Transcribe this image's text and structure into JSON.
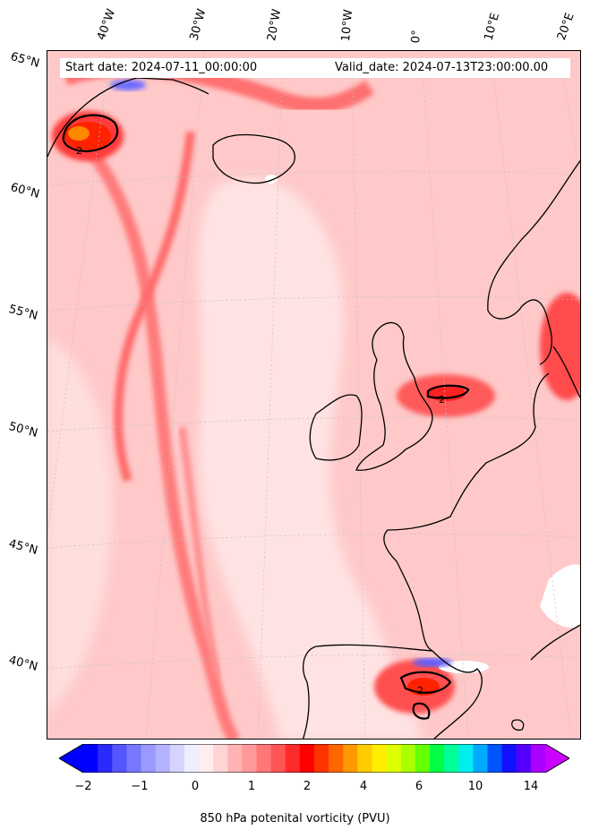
{
  "header": {
    "start_date": "Start date: 2024-07-11_00:00:00",
    "valid_date": "Valid_date: 2024-07-13T23:00:00.00"
  },
  "graticule": {
    "longitudes": [
      "40°W",
      "30°W",
      "20°W",
      "10°W",
      "0°",
      "10°E",
      "20°E"
    ],
    "latitudes": [
      "65°N",
      "60°N",
      "55°N",
      "50°N",
      "45°N",
      "40°N"
    ]
  },
  "colorbar": {
    "tick_labels": [
      "−2",
      "−1",
      "0",
      "1",
      "2",
      "4",
      "6",
      "10",
      "14"
    ],
    "label": "850 hPa potenital vorticity (PVU)",
    "colors": [
      "#0000ff",
      "#2a2aff",
      "#5555ff",
      "#7777ff",
      "#9999ff",
      "#b3b3ff",
      "#d4d4ff",
      "#eeeeff",
      "#ffeeee",
      "#ffd4d4",
      "#ffb3b3",
      "#ff9999",
      "#ff7777",
      "#ff5555",
      "#ff2a2a",
      "#ff0000",
      "#ff3300",
      "#ff6600",
      "#ff9900",
      "#ffcc00",
      "#ffee00",
      "#ddff00",
      "#aaff00",
      "#66ff00",
      "#00ff44",
      "#00ff99",
      "#00eeee",
      "#00aaff",
      "#0055ff",
      "#1111ff",
      "#5500ff",
      "#aa00ff"
    ],
    "extend_low": "#0000ff",
    "extend_high": "#cc00ff"
  },
  "contour_label": "2",
  "colors": {
    "background_field": "#ffd0d0",
    "coast": "#000000"
  }
}
